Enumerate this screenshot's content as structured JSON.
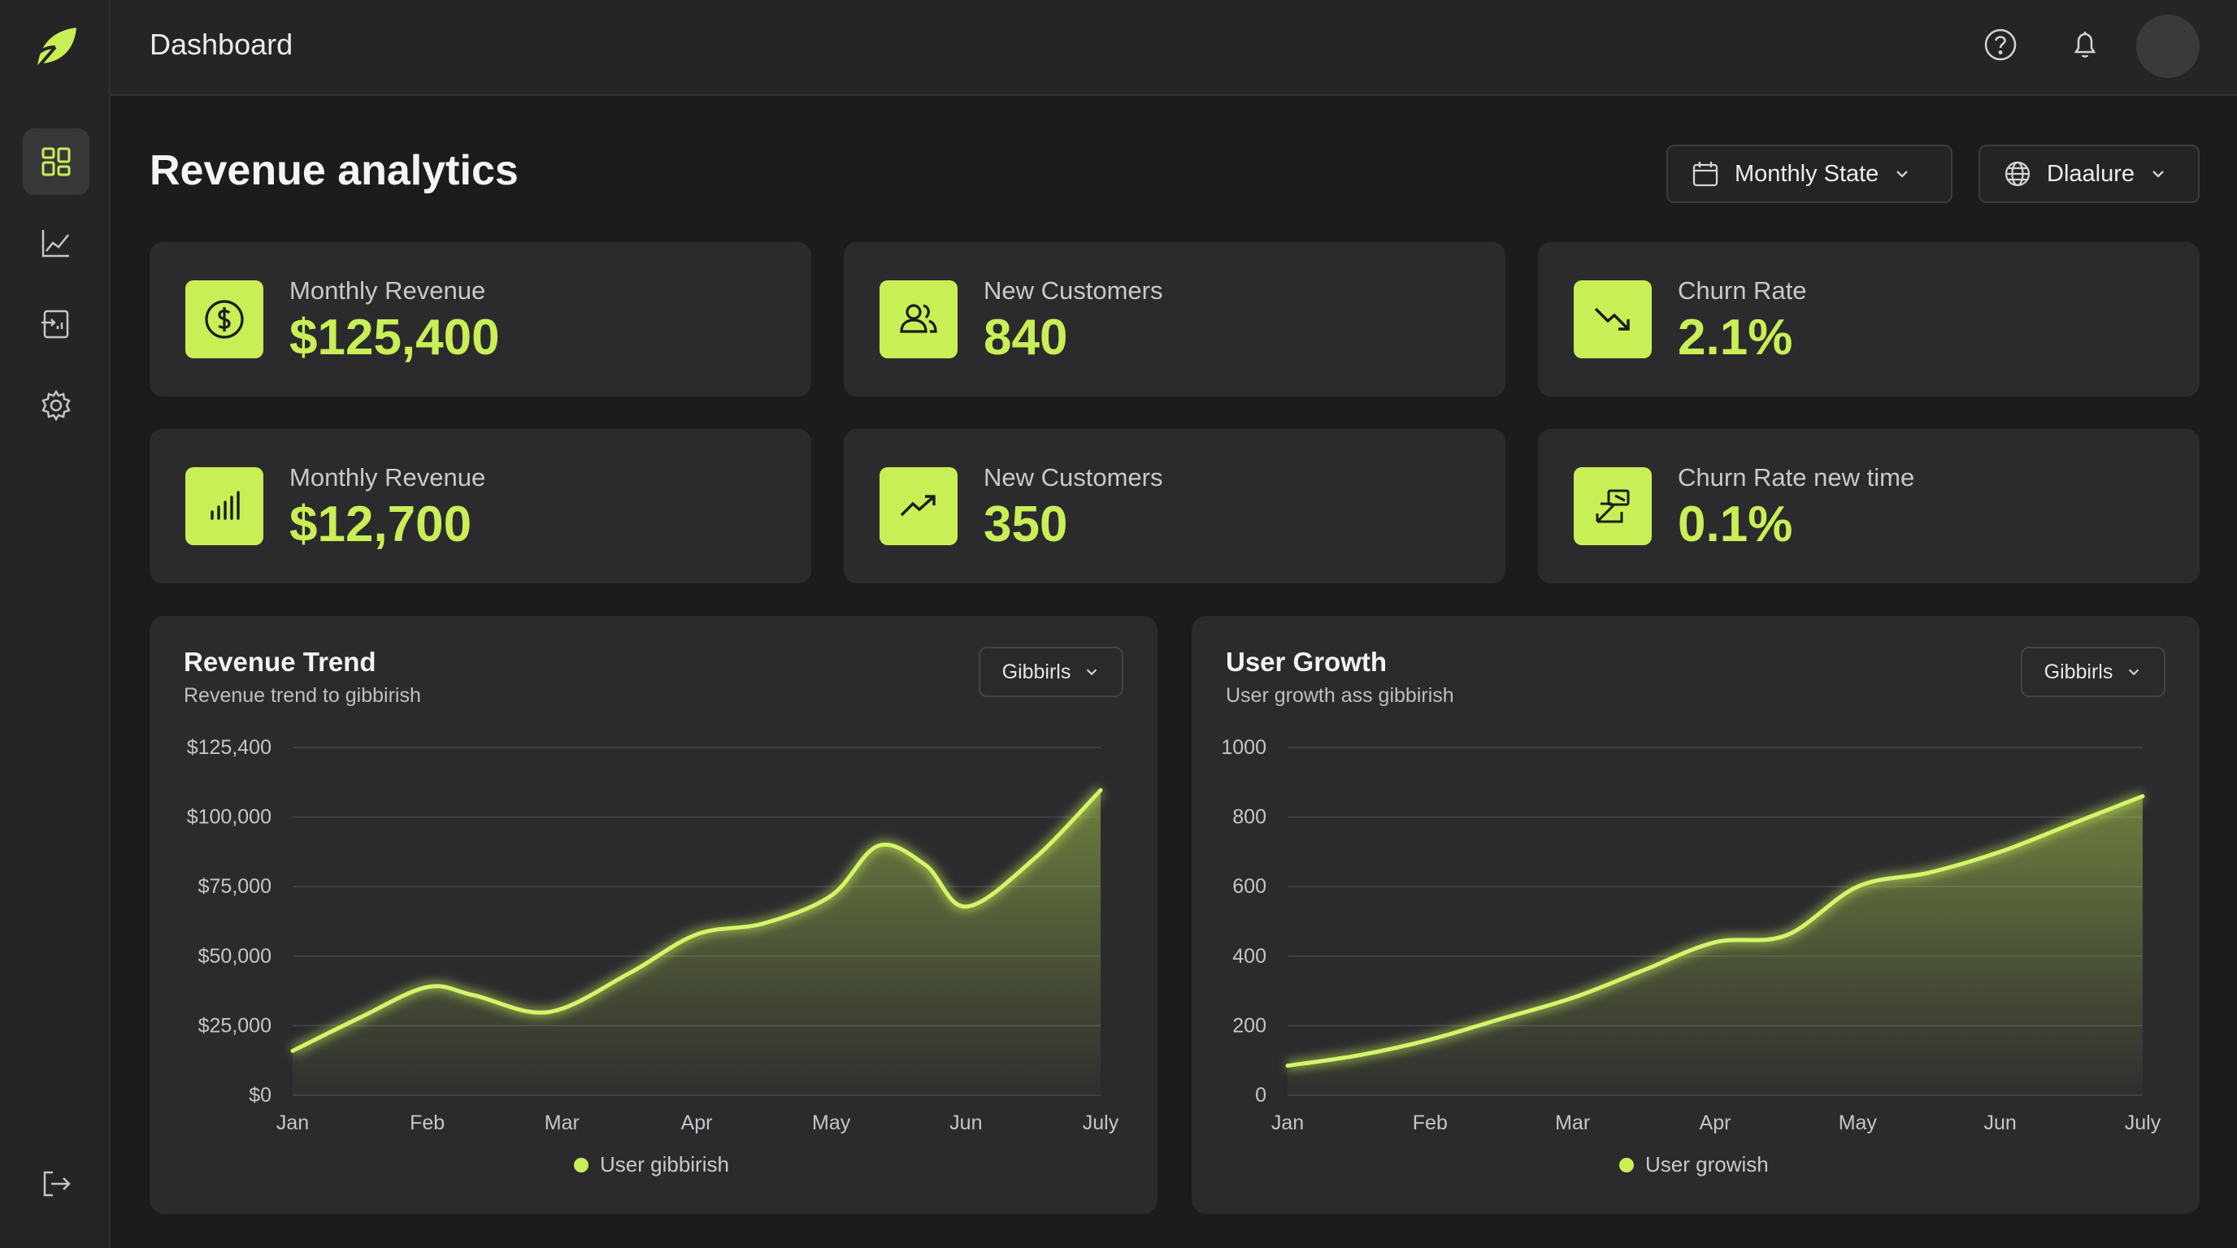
{
  "app": {
    "title": "Dashboard"
  },
  "sidebar": {
    "items": [
      {
        "icon": "dashboard-grid-icon",
        "active": true
      },
      {
        "icon": "line-chart-icon",
        "active": false
      },
      {
        "icon": "report-icon",
        "active": false
      },
      {
        "icon": "gear-icon",
        "active": false
      }
    ],
    "logout_icon": "logout-icon"
  },
  "header": {
    "help_icon": "help-icon",
    "bell_icon": "bell-icon"
  },
  "page": {
    "title": "Revenue analytics",
    "filters": {
      "period": "Monthly State",
      "region": "Dlaalure"
    }
  },
  "cards": [
    {
      "label": "Monthly Revenue",
      "value": "$125,400",
      "icon": "dollar-icon"
    },
    {
      "label": "New Customers",
      "value": "840",
      "icon": "users-icon"
    },
    {
      "label": "Churn Rate",
      "value": "2.1%",
      "icon": "trend-down-icon"
    },
    {
      "label": "Monthly Revenue",
      "value": "$12,700",
      "icon": "bar-chart-icon"
    },
    {
      "label": "New Customers",
      "value": "350",
      "icon": "trend-up-icon"
    },
    {
      "label": "Churn Rate new time",
      "value": "0.1%",
      "icon": "transfer-icon"
    }
  ],
  "panels": [
    {
      "title": "Revenue Trend",
      "subtitle": "Revenue trend to gibbirish",
      "dropdown": "Gibbirls",
      "legend": "User gibbirish"
    },
    {
      "title": "User Growth",
      "subtitle": "User growth ass gibbirish",
      "dropdown": "Gibbirls",
      "legend": "User growish"
    }
  ],
  "colors": {
    "accent": "#c8ef55",
    "background": "#1c1c1e",
    "card": "#2b2b2e"
  },
  "chart_data": [
    {
      "type": "area",
      "title": "Revenue Trend",
      "categories": [
        "Jan",
        "Feb",
        "Mar",
        "Apr",
        "May",
        "Jun",
        "July"
      ],
      "y_tick_labels": [
        "$0",
        "$25,000",
        "$50,000",
        "$75,000",
        "$100,000",
        "$125,400"
      ],
      "ylim": [
        0,
        125400
      ],
      "series": [
        {
          "name": "User gibbirish",
          "x": [
            0,
            0.5,
            1,
            1.35,
            1.9,
            2.5,
            3,
            3.5,
            4,
            4.35,
            4.7,
            5,
            5.5,
            6
          ],
          "values": [
            16000,
            28000,
            39000,
            36000,
            30000,
            44000,
            58000,
            62000,
            72000,
            90000,
            83000,
            68000,
            85000,
            110000
          ]
        }
      ],
      "grid": true,
      "legend_position": "bottom"
    },
    {
      "type": "area",
      "title": "User Growth",
      "categories": [
        "Jan",
        "Feb",
        "Mar",
        "Apr",
        "May",
        "Jun",
        "July"
      ],
      "y_tick_labels": [
        "0",
        "200",
        "400",
        "600",
        "800",
        "1000"
      ],
      "ylim": [
        0,
        1000
      ],
      "series": [
        {
          "name": "User growish",
          "x": [
            0,
            0.5,
            1,
            1.5,
            2,
            2.5,
            3,
            3.5,
            4,
            4.5,
            5,
            5.5,
            6
          ],
          "values": [
            85,
            115,
            160,
            220,
            280,
            360,
            440,
            460,
            600,
            640,
            700,
            780,
            860
          ]
        }
      ],
      "grid": true,
      "legend_position": "bottom"
    }
  ]
}
